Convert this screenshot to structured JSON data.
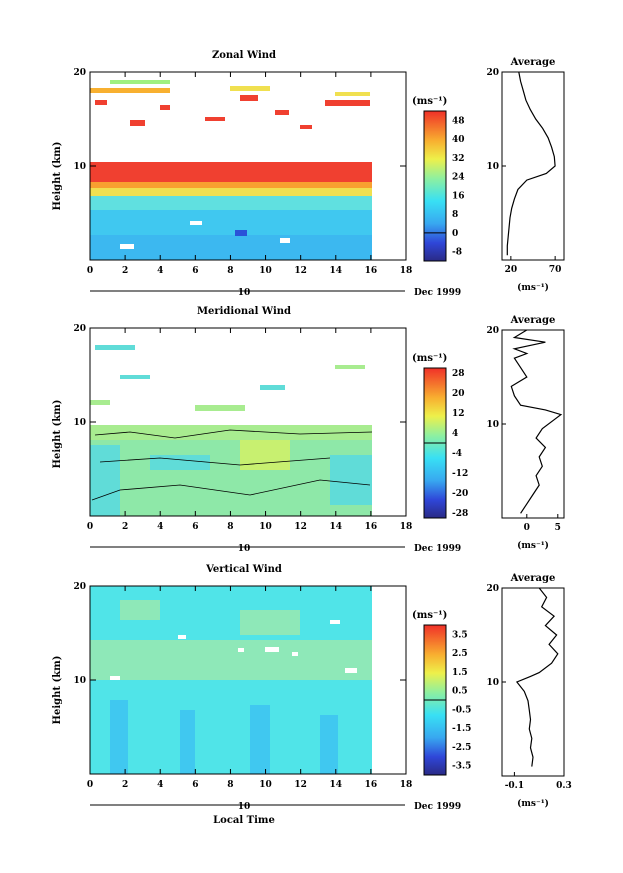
{
  "chart_data": [
    {
      "type": "heatmap",
      "title": "Zonal Wind",
      "ylabel": "Height (km)",
      "xlim": [
        0,
        18
      ],
      "ylim": [
        0,
        20
      ],
      "xticks": [
        "0",
        "2",
        "4",
        "6",
        "8",
        "10",
        "12",
        "14",
        "16",
        "18"
      ],
      "yticks": [
        "10",
        "20"
      ],
      "date_label": "Dec 1999",
      "day_label": "10",
      "colorbar": {
        "unit": "(ms⁻¹)",
        "range": [
          -12,
          52
        ],
        "ticks": [
          "48",
          "40",
          "32",
          "24",
          "16",
          "8",
          "0",
          "-8"
        ],
        "zero": 0
      },
      "profile": {
        "title": "Average",
        "xlim": [
          10,
          80
        ],
        "xticks": [
          "20",
          "70"
        ],
        "xlabel": "(ms⁻¹)",
        "yticks": [
          "10",
          "20"
        ],
        "points": [
          [
            16,
            0.5
          ],
          [
            16,
            1.5
          ],
          [
            17,
            2.5
          ],
          [
            18,
            3.5
          ],
          [
            19,
            4.5
          ],
          [
            21,
            5.5
          ],
          [
            24,
            6.5
          ],
          [
            28,
            7.5
          ],
          [
            38,
            8.5
          ],
          [
            60,
            9.2
          ],
          [
            70,
            10
          ],
          [
            69,
            11
          ],
          [
            66,
            12
          ],
          [
            62,
            13
          ],
          [
            56,
            14
          ],
          [
            48,
            15
          ],
          [
            42,
            16
          ],
          [
            37,
            17
          ],
          [
            34,
            18
          ],
          [
            31,
            19
          ],
          [
            29,
            20
          ]
        ]
      },
      "data_region": {
        "x": [
          0,
          16.3
        ],
        "y": [
          0,
          20
        ]
      }
    },
    {
      "type": "heatmap",
      "title": "Meridional Wind",
      "ylabel": "Height (km)",
      "xlim": [
        0,
        18
      ],
      "ylim": [
        0,
        20
      ],
      "xticks": [
        "0",
        "2",
        "4",
        "6",
        "8",
        "10",
        "12",
        "14",
        "16",
        "18"
      ],
      "yticks": [
        "10",
        "20"
      ],
      "date_label": "Dec 1999",
      "day_label": "10",
      "colorbar": {
        "unit": "(ms⁻¹)",
        "range": [
          -30,
          30
        ],
        "ticks": [
          "28",
          "20",
          "12",
          "4",
          "-4",
          "-12",
          "-20",
          "-28"
        ],
        "zero": 0
      },
      "profile": {
        "title": "Average",
        "xlim": [
          -4,
          6
        ],
        "xticks": [
          "0",
          "5"
        ],
        "xlabel": "(ms⁻¹)",
        "yticks": [
          "10",
          "20"
        ],
        "points": [
          [
            -1,
            0.5
          ],
          [
            0,
            1.5
          ],
          [
            1,
            2.5
          ],
          [
            2,
            3.5
          ],
          [
            1.5,
            4.5
          ],
          [
            2.5,
            5.5
          ],
          [
            2,
            6.5
          ],
          [
            3,
            7.5
          ],
          [
            1.5,
            8.5
          ],
          [
            2.5,
            9.5
          ],
          [
            4.5,
            10.5
          ],
          [
            5.5,
            11
          ],
          [
            3,
            11.5
          ],
          [
            -1,
            12
          ],
          [
            -2,
            13
          ],
          [
            -2.5,
            14
          ],
          [
            0,
            15
          ],
          [
            -1,
            16
          ],
          [
            -2,
            17
          ],
          [
            0,
            17.5
          ],
          [
            -2,
            18
          ],
          [
            3,
            18.7
          ],
          [
            -2,
            19.2
          ],
          [
            0,
            20
          ]
        ]
      },
      "data_region": {
        "x": [
          0,
          16.3
        ],
        "y": [
          0,
          20
        ]
      }
    },
    {
      "type": "heatmap",
      "title": "Vertical Wind",
      "ylabel": "Height (km)",
      "xlabel": "Local Time",
      "xlim": [
        0,
        18
      ],
      "ylim": [
        0,
        20
      ],
      "xticks": [
        "0",
        "2",
        "4",
        "6",
        "8",
        "10",
        "12",
        "14",
        "16",
        "18"
      ],
      "yticks": [
        "10",
        "20"
      ],
      "date_label": "Dec 1999",
      "day_label": "10",
      "colorbar": {
        "unit": "(ms⁻¹)",
        "range": [
          -4,
          4
        ],
        "ticks": [
          "3.5",
          "2.5",
          "1.5",
          "0.5",
          "-0.5",
          "-1.5",
          "-2.5",
          "-3.5"
        ],
        "zero": 0
      },
      "profile": {
        "title": "Average",
        "xlim": [
          -0.2,
          0.3
        ],
        "xticks": [
          "-0.1",
          "0.3"
        ],
        "xlabel": "(ms⁻¹)",
        "yticks": [
          "10",
          "20"
        ],
        "points": [
          [
            0.04,
            1
          ],
          [
            0.05,
            2
          ],
          [
            0.03,
            3
          ],
          [
            0.04,
            4
          ],
          [
            0.02,
            5
          ],
          [
            0.03,
            6
          ],
          [
            0.02,
            7
          ],
          [
            0.01,
            8
          ],
          [
            -0.02,
            9
          ],
          [
            -0.08,
            10
          ],
          [
            0.03,
            10.6
          ],
          [
            0.1,
            11
          ],
          [
            0.2,
            12
          ],
          [
            0.25,
            13
          ],
          [
            0.18,
            14
          ],
          [
            0.24,
            15
          ],
          [
            0.15,
            16
          ],
          [
            0.22,
            17
          ],
          [
            0.12,
            18
          ],
          [
            0.16,
            19
          ],
          [
            0.1,
            20
          ]
        ]
      },
      "data_region": {
        "x": [
          0,
          16.3
        ],
        "y": [
          0,
          20
        ]
      }
    }
  ]
}
